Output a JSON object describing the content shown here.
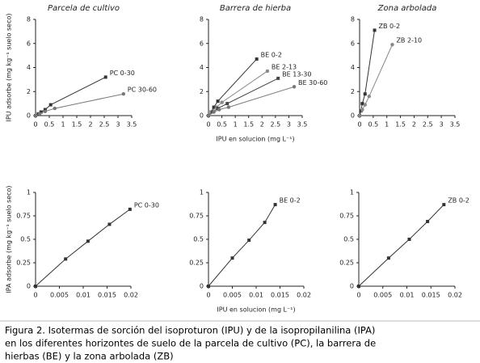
{
  "chart_data": [
    {
      "type": "line",
      "title": "Parcela de cultivo",
      "ylabel": "IPU adsorbe (mg kg⁻¹ suelo seco)",
      "xlim": [
        0,
        3.5
      ],
      "xticks": [
        0,
        0.5,
        1,
        1.5,
        2,
        2.5,
        3,
        3.5
      ],
      "ylim": [
        0,
        8
      ],
      "yticks": [
        0,
        2,
        4,
        6,
        8
      ],
      "series": [
        {
          "name": "PC 0-30",
          "color": "#333333",
          "x": [
            0,
            0.1,
            0.2,
            0.35,
            0.55,
            2.55
          ],
          "values": [
            0,
            0.15,
            0.3,
            0.5,
            0.9,
            3.2
          ]
        },
        {
          "name": "PC 30-60",
          "color": "#777777",
          "x": [
            0,
            0.15,
            0.35,
            0.7,
            3.2
          ],
          "values": [
            0,
            0.15,
            0.35,
            0.6,
            1.8
          ]
        }
      ]
    },
    {
      "type": "line",
      "title": "Barrera de hierba",
      "xlabel": "IPU en solucion (mg L⁻¹)",
      "xlim": [
        0,
        3.5
      ],
      "xticks": [
        0,
        0.5,
        1,
        1.5,
        2,
        2.5,
        3,
        3.5
      ],
      "ylim": [
        0,
        8
      ],
      "yticks": [
        0,
        2,
        4,
        6,
        8
      ],
      "series": [
        {
          "name": "BE 0-2",
          "color": "#333333",
          "x": [
            0,
            0.1,
            0.2,
            0.35,
            1.8
          ],
          "values": [
            0,
            0.3,
            0.7,
            1.2,
            4.7
          ]
        },
        {
          "name": "BE 2-13",
          "color": "#888888",
          "x": [
            0,
            0.1,
            0.3,
            0.5,
            2.2
          ],
          "values": [
            0,
            0.3,
            0.7,
            1.1,
            3.7
          ]
        },
        {
          "name": "BE 13-30",
          "color": "#444444",
          "x": [
            0,
            0.15,
            0.35,
            0.7,
            2.6
          ],
          "values": [
            0,
            0.3,
            0.6,
            1.0,
            3.1
          ]
        },
        {
          "name": "BE 30-60",
          "color": "#777777",
          "x": [
            0,
            0.2,
            0.4,
            0.75,
            3.2
          ],
          "values": [
            0,
            0.3,
            0.5,
            0.7,
            2.4
          ]
        }
      ]
    },
    {
      "type": "line",
      "title": "Zona arbolada",
      "xlim": [
        0,
        3.5
      ],
      "xticks": [
        0,
        0.5,
        1,
        1.5,
        2,
        2.5,
        3,
        3.5
      ],
      "ylim": [
        0,
        8
      ],
      "yticks": [
        0,
        2,
        4,
        6,
        8
      ],
      "series": [
        {
          "name": "ZB 0-2",
          "color": "#333333",
          "x": [
            0,
            0.05,
            0.1,
            0.2,
            0.55
          ],
          "values": [
            0,
            0.4,
            1.0,
            1.8,
            7.1
          ]
        },
        {
          "name": "ZB 2-10",
          "color": "#888888",
          "x": [
            0,
            0.1,
            0.2,
            0.35,
            1.2
          ],
          "values": [
            0,
            0.5,
            0.9,
            1.6,
            5.9
          ]
        }
      ]
    },
    {
      "type": "line",
      "ylabel": "IPA adsorbe (mg kg⁻¹ suelo seco)",
      "xlim": [
        0,
        0.02
      ],
      "xticks": [
        0,
        0.005,
        0.01,
        0.015,
        0.02
      ],
      "ylim": [
        0,
        1
      ],
      "yticks": [
        0,
        0.25,
        0.5,
        0.75,
        1
      ],
      "series": [
        {
          "name": "PC 0-30",
          "color": "#333333",
          "x": [
            0,
            0.0063,
            0.011,
            0.0155,
            0.0198
          ],
          "values": [
            0,
            0.29,
            0.48,
            0.66,
            0.82
          ]
        }
      ]
    },
    {
      "type": "line",
      "xlabel": "IPU en solucion (mg L⁻¹)",
      "xlim": [
        0,
        0.02
      ],
      "xticks": [
        0,
        0.005,
        0.01,
        0.015,
        0.02
      ],
      "ylim": [
        0,
        1
      ],
      "yticks": [
        0,
        0.25,
        0.5,
        0.75,
        1
      ],
      "series": [
        {
          "name": "BE 0-2",
          "color": "#333333",
          "x": [
            0,
            0.005,
            0.0085,
            0.0118,
            0.014
          ],
          "values": [
            0,
            0.3,
            0.49,
            0.68,
            0.87
          ]
        }
      ]
    },
    {
      "type": "line",
      "xlim": [
        0,
        0.02
      ],
      "xticks": [
        0,
        0.005,
        0.01,
        0.015,
        0.02
      ],
      "ylim": [
        0,
        1
      ],
      "yticks": [
        0,
        0.25,
        0.5,
        0.75,
        1
      ],
      "series": [
        {
          "name": "ZB 0-2",
          "color": "#333333",
          "x": [
            0,
            0.0062,
            0.0105,
            0.0143,
            0.0177
          ],
          "values": [
            0,
            0.3,
            0.5,
            0.69,
            0.87
          ]
        }
      ]
    }
  ],
  "caption": [
    "Figura 2. Isotermas de sorción del isoproturon (IPU) y de la isopropilanilina (IPA)",
    "en los diferentes horizontes de suelo de la parcela de cultivo (PC), la barrera de",
    "hierbas (BE) y la zona arbolada (ZB)"
  ]
}
